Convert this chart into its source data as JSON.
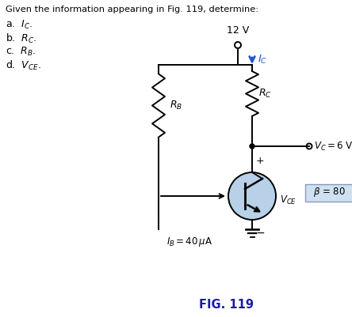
{
  "title_text": "Given the information appearing in Fig. 119, determine:",
  "item_a": "a.  $I_C$.",
  "item_b": "b.  $R_C$.",
  "item_c": "c.  $R_B$.",
  "item_d": "d.  $V_{CE}$.",
  "fig_label": "FIG. 119",
  "voltage_supply": "12 V",
  "Ic_label": "$I_C$",
  "Rc_label": "$R_C$",
  "Rb_label": "$R_B$",
  "Vc_label": "$V_C = 6$ V",
  "Vce_label": "$V_{CE}$",
  "beta_label": "$\\beta$ = 80",
  "Ib_label": "$I_B = 40\\,\\mu$A",
  "bg_color": "#ffffff",
  "circuit_color": "#000000",
  "arrow_color": "#2255cc",
  "highlight_color": "#b8d0e8",
  "beta_box_color": "#cfe0f0",
  "fig_label_color": "#1a1aaa",
  "text_color": "#444444"
}
